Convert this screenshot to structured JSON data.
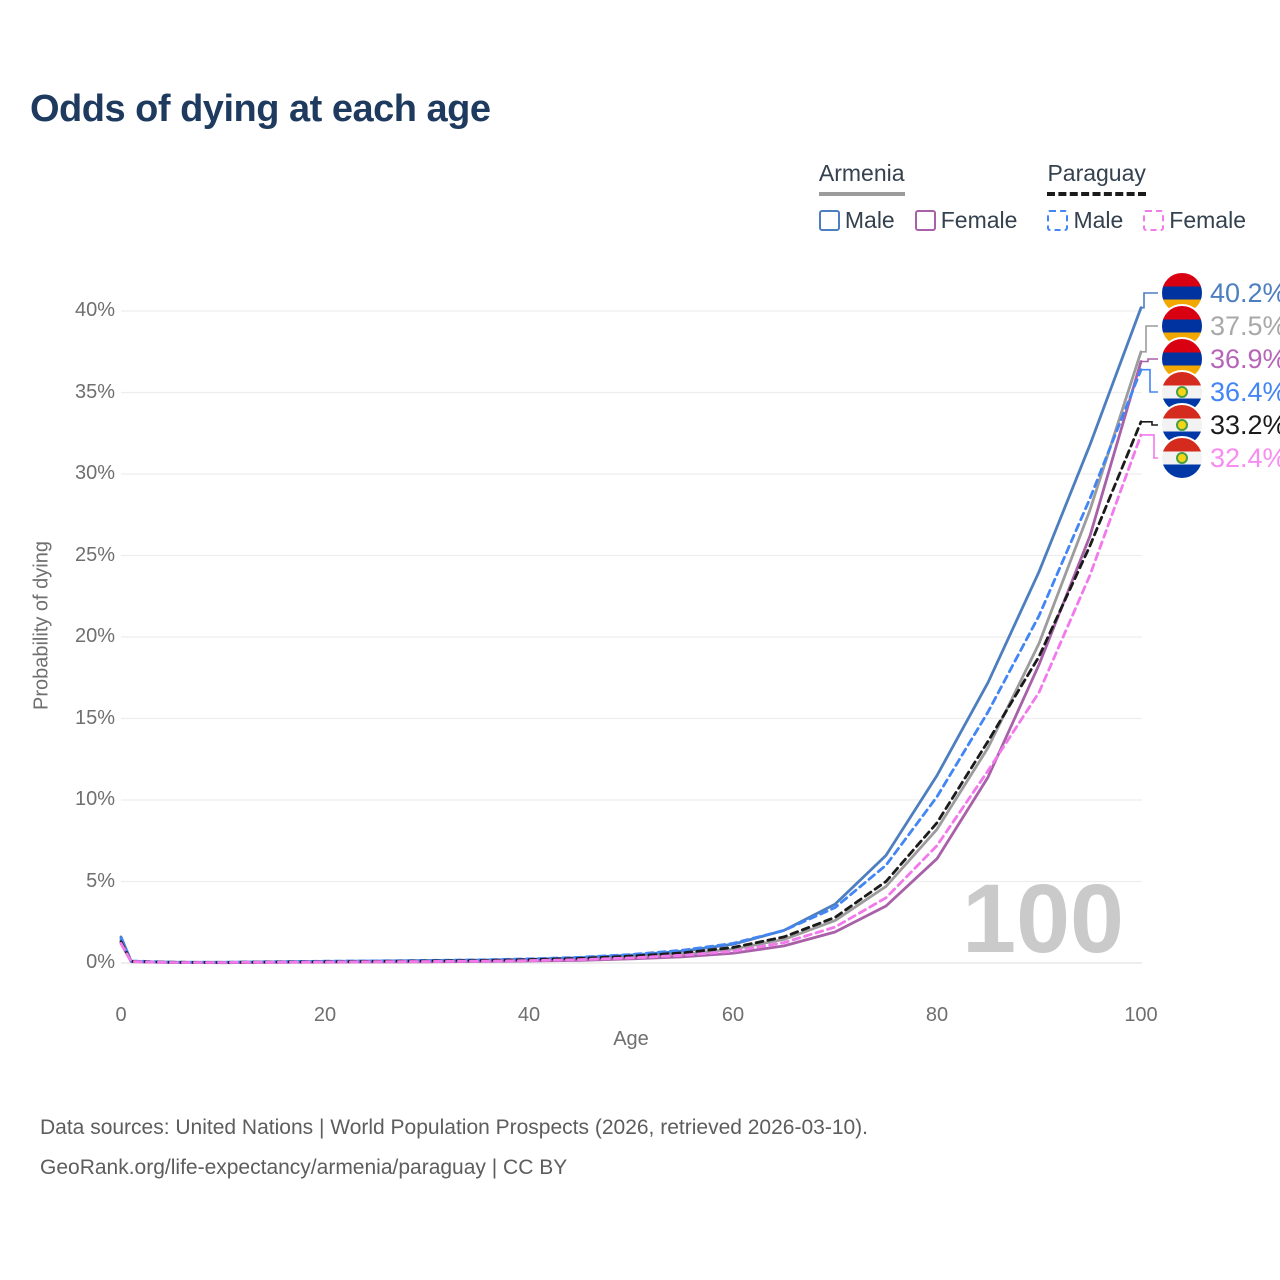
{
  "title": "Odds of dying at each age",
  "legend": {
    "groups": [
      {
        "name": "Armenia",
        "line_style": "solid",
        "line_color": "#9c9c9c",
        "items": [
          {
            "label": "Male",
            "color": "#4d7ebf"
          },
          {
            "label": "Female",
            "color": "#a861a8"
          }
        ]
      },
      {
        "name": "Paraguay",
        "line_style": "dashed",
        "line_color": "#1b1b1b",
        "items": [
          {
            "label": "Male",
            "color": "#4285f4"
          },
          {
            "label": "Female",
            "color": "#f279ec"
          }
        ]
      }
    ]
  },
  "chart_data": {
    "type": "line",
    "title": "Odds of dying at each age",
    "xlabel": "Age",
    "ylabel": "Probability of dying",
    "xlim": [
      0,
      100
    ],
    "ylim_percent": [
      0,
      42
    ],
    "grid": true,
    "legend_position": "top-right",
    "watermark": "100",
    "x_ticks": [
      0,
      20,
      40,
      60,
      80,
      100
    ],
    "y_tick_values": [
      0,
      5,
      10,
      15,
      20,
      25,
      30,
      35,
      40
    ],
    "y_tick_labels": [
      "0%",
      "5%",
      "10%",
      "15%",
      "20%",
      "25%",
      "30%",
      "35%",
      "40%"
    ],
    "unit": "percent probability of dying at each age",
    "ages": [
      0,
      1,
      5,
      10,
      15,
      20,
      25,
      30,
      35,
      40,
      45,
      50,
      55,
      60,
      65,
      70,
      75,
      80,
      85,
      90,
      95,
      100
    ],
    "series": [
      {
        "id": "armenia-male",
        "country": "Armenia",
        "sex": "Male",
        "color": "#4d7ebf",
        "dash": false,
        "flag": "armenia",
        "end_label": "40.2%",
        "label_color": "#4d7ebf",
        "values": [
          1.6,
          0.1,
          0.04,
          0.04,
          0.07,
          0.1,
          0.12,
          0.14,
          0.17,
          0.22,
          0.32,
          0.48,
          0.72,
          1.15,
          2.0,
          3.6,
          6.6,
          11.5,
          17.2,
          24.0,
          31.8,
          40.2
        ]
      },
      {
        "id": "armenia-both",
        "country": "Armenia",
        "sex": "Both sexes",
        "color": "#9c9c9c",
        "dash": false,
        "flag": "armenia",
        "end_label": "37.5%",
        "label_color": "#a8a8a8",
        "values": [
          1.4,
          0.09,
          0.03,
          0.03,
          0.05,
          0.07,
          0.09,
          0.1,
          0.12,
          0.16,
          0.23,
          0.35,
          0.53,
          0.85,
          1.45,
          2.6,
          4.7,
          8.2,
          13.2,
          19.6,
          27.8,
          37.5
        ]
      },
      {
        "id": "armenia-female",
        "country": "Armenia",
        "sex": "Female",
        "color": "#a861a8",
        "dash": false,
        "flag": "armenia",
        "end_label": "36.9%",
        "label_color": "#b765b7",
        "values": [
          1.2,
          0.08,
          0.03,
          0.02,
          0.04,
          0.05,
          0.06,
          0.07,
          0.09,
          0.12,
          0.16,
          0.25,
          0.38,
          0.6,
          1.05,
          1.9,
          3.5,
          6.4,
          11.4,
          18.3,
          26.2,
          36.9
        ]
      },
      {
        "id": "paraguay-male",
        "country": "Paraguay",
        "sex": "Male",
        "color": "#4285f4",
        "dash": true,
        "flag": "paraguay",
        "end_label": "36.4%",
        "label_color": "#4285f4",
        "values": [
          1.5,
          0.12,
          0.05,
          0.04,
          0.08,
          0.11,
          0.13,
          0.16,
          0.19,
          0.25,
          0.35,
          0.52,
          0.78,
          1.2,
          2.0,
          3.4,
          6.0,
          10.2,
          15.4,
          21.3,
          28.5,
          36.4
        ]
      },
      {
        "id": "paraguay-both",
        "country": "Paraguay",
        "sex": "Both sexes",
        "color": "#1b1b1b",
        "dash": true,
        "flag": "paraguay",
        "end_label": "33.2%",
        "label_color": "#1b1b1b",
        "values": [
          1.3,
          0.1,
          0.04,
          0.03,
          0.06,
          0.08,
          0.1,
          0.12,
          0.15,
          0.2,
          0.28,
          0.42,
          0.62,
          0.95,
          1.6,
          2.8,
          5.0,
          8.6,
          13.6,
          18.8,
          25.6,
          33.2
        ]
      },
      {
        "id": "paraguay-female",
        "country": "Paraguay",
        "sex": "Female",
        "color": "#f279ec",
        "dash": true,
        "flag": "paraguay",
        "end_label": "32.4%",
        "label_color": "#f78df1",
        "values": [
          1.2,
          0.09,
          0.03,
          0.03,
          0.05,
          0.06,
          0.08,
          0.09,
          0.11,
          0.15,
          0.21,
          0.31,
          0.47,
          0.72,
          1.25,
          2.2,
          4.0,
          7.2,
          11.8,
          16.6,
          23.8,
          32.4
        ]
      }
    ]
  },
  "footer": {
    "line1": "Data sources: United Nations | World Population Prospects (2026, retrieved 2026-03-10).",
    "line2": "GeoRank.org/life-expectancy/armenia/paraguay | CC BY"
  }
}
